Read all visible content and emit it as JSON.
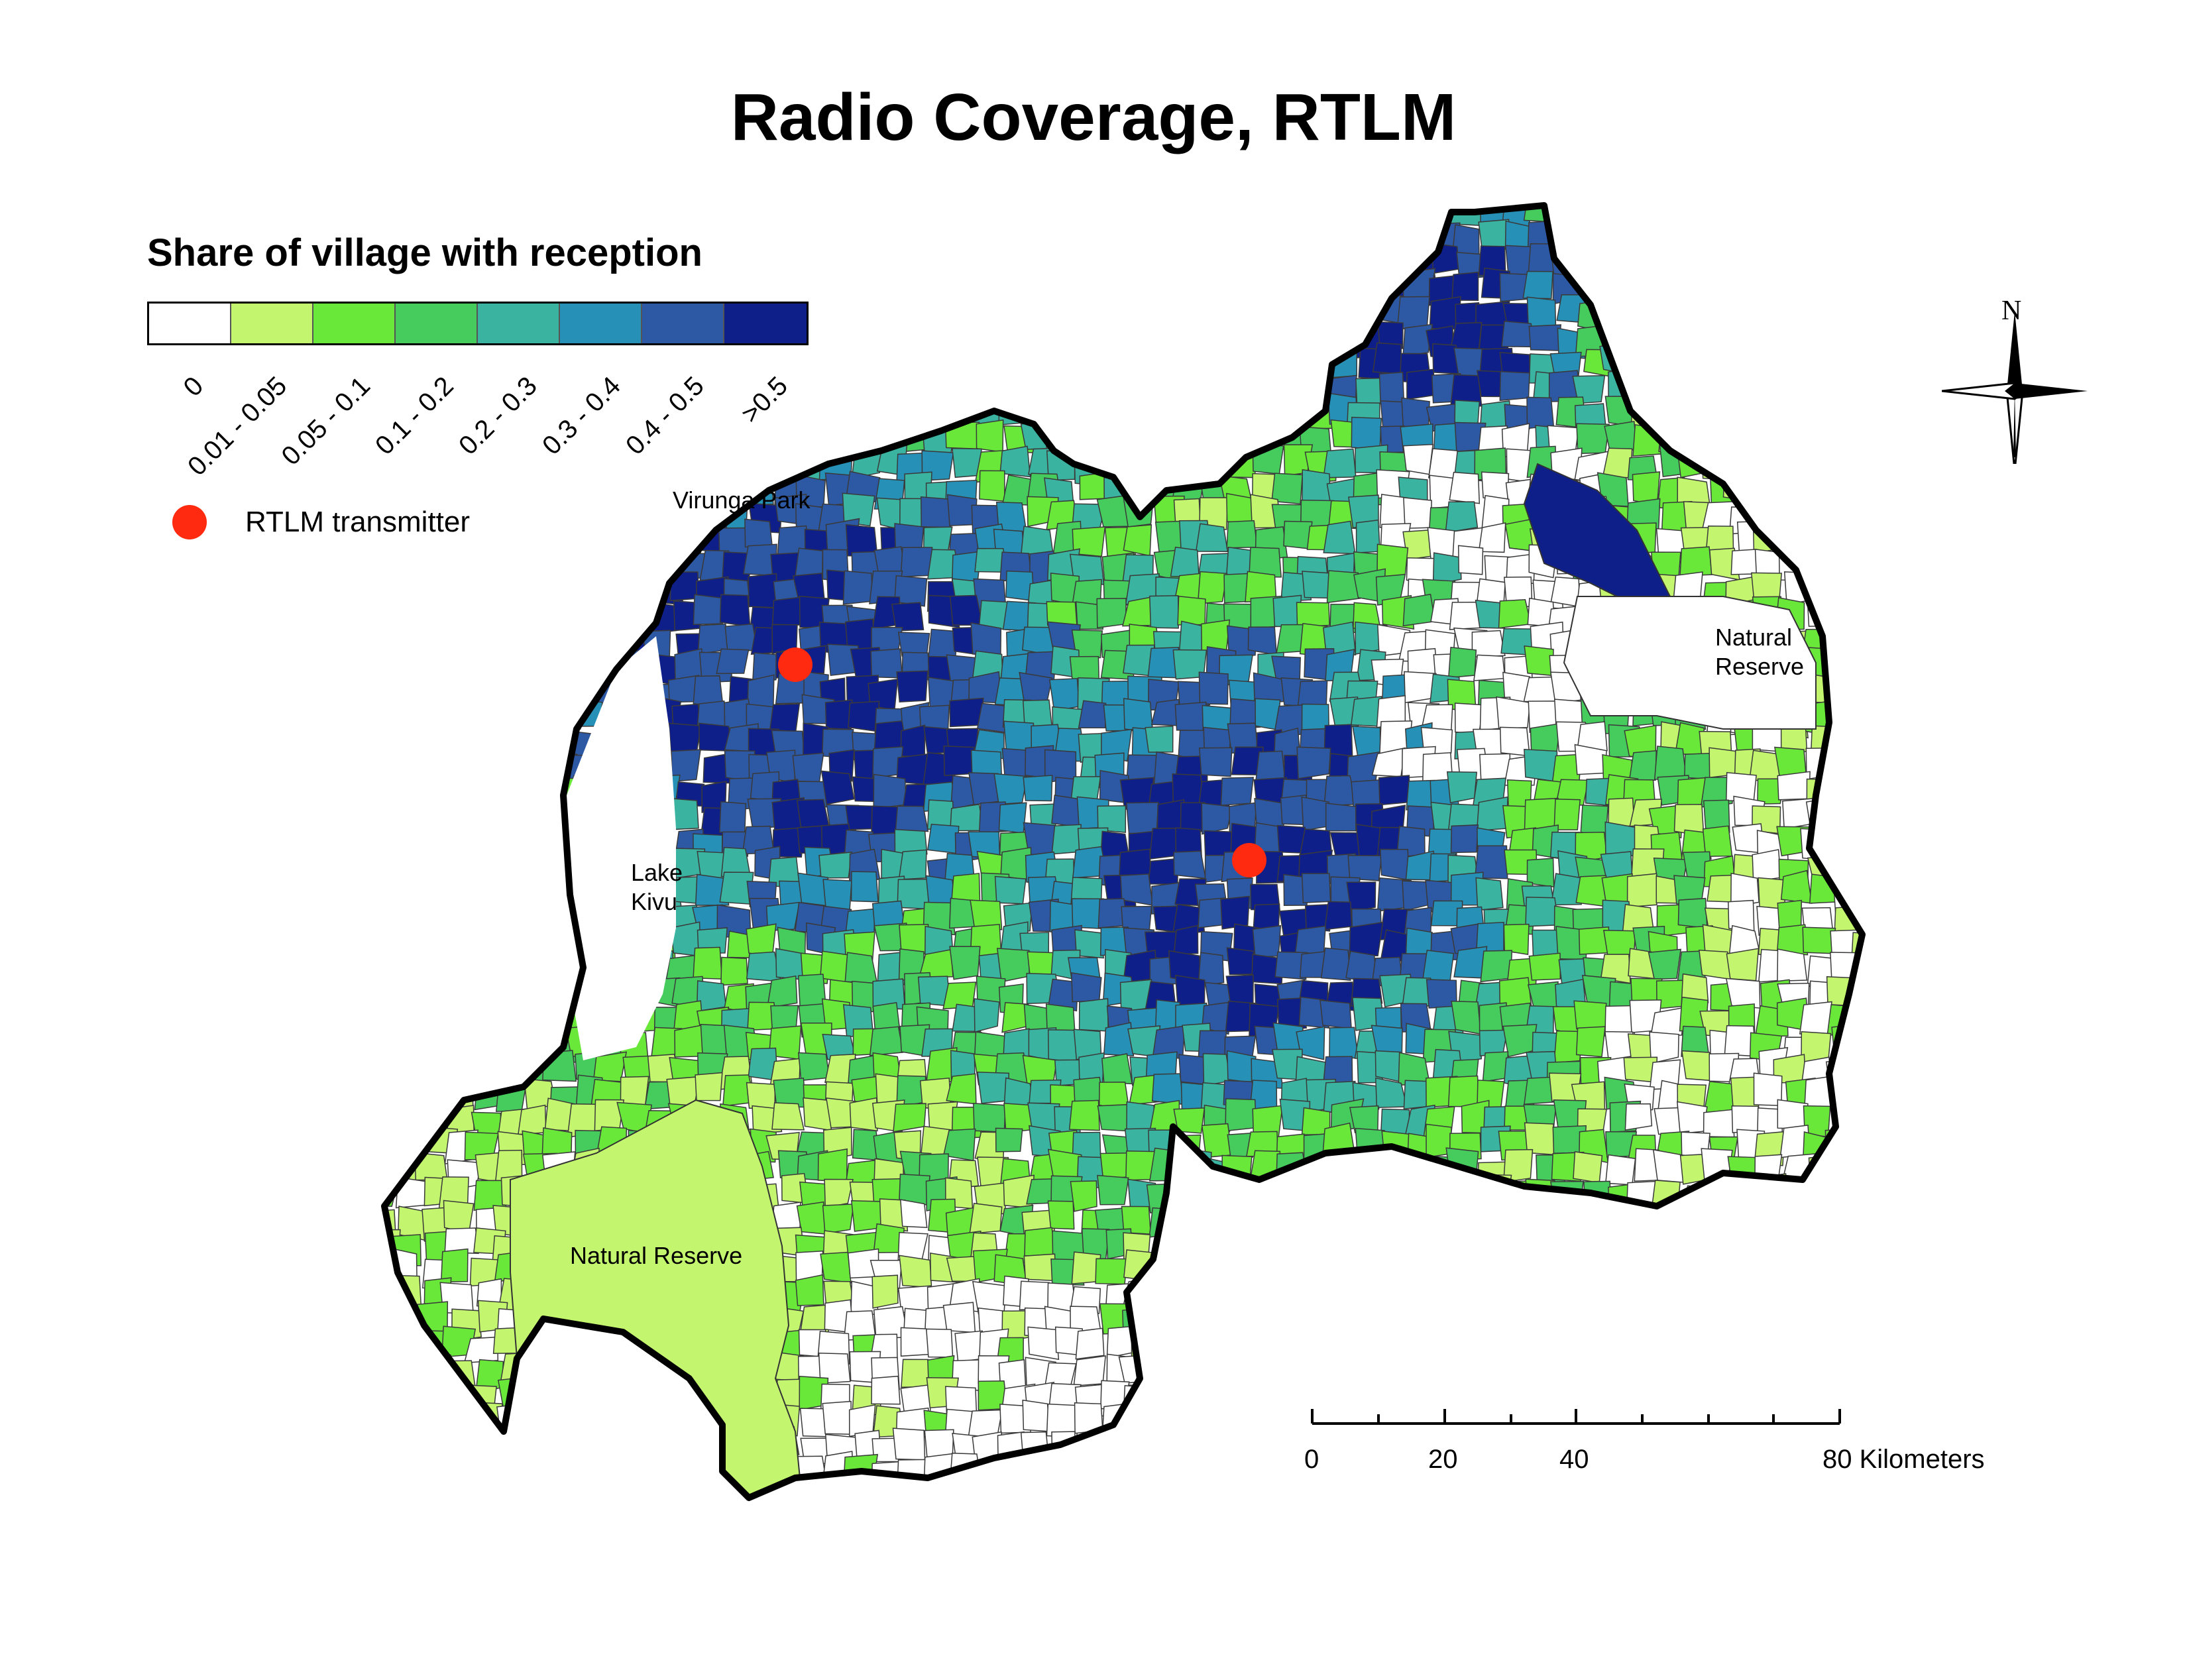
{
  "title": "Radio Coverage, RTLM",
  "legend": {
    "title": "Share of village with reception",
    "classes": [
      {
        "label": "0",
        "color": "#ffffff"
      },
      {
        "label": "0.01 - 0.05",
        "color": "#c4f56e"
      },
      {
        "label": "0.05 - 0.1",
        "color": "#69e83a"
      },
      {
        "label": "0.1 - 0.2",
        "color": "#46cc5c"
      },
      {
        "label": "0.2 - 0.3",
        "color": "#3ab4a0"
      },
      {
        "label": "0.3 - 0.4",
        "color": "#2690b6"
      },
      {
        "label": "0.4 - 0.5",
        "color": "#2c58a4"
      },
      {
        "label": ">0.5",
        "color": "#0f1f8a"
      }
    ],
    "transmitter_label": "RTLM transmitter",
    "transmitter_color": "#ff2a10"
  },
  "map_labels": {
    "virunga": "Virunga Park",
    "lake_kivu_1": "Lake",
    "lake_kivu_2": "Kivu",
    "natural_reserve_east_1": "Natural",
    "natural_reserve_east_2": "Reserve",
    "natural_reserve_sw": "Natural Reserve"
  },
  "scale_bar": {
    "ticks": [
      "0",
      "20",
      "40",
      "80 Kilometers"
    ]
  },
  "north_arrow": {
    "letter": "N",
    "icon": "compass-rose-icon"
  }
}
